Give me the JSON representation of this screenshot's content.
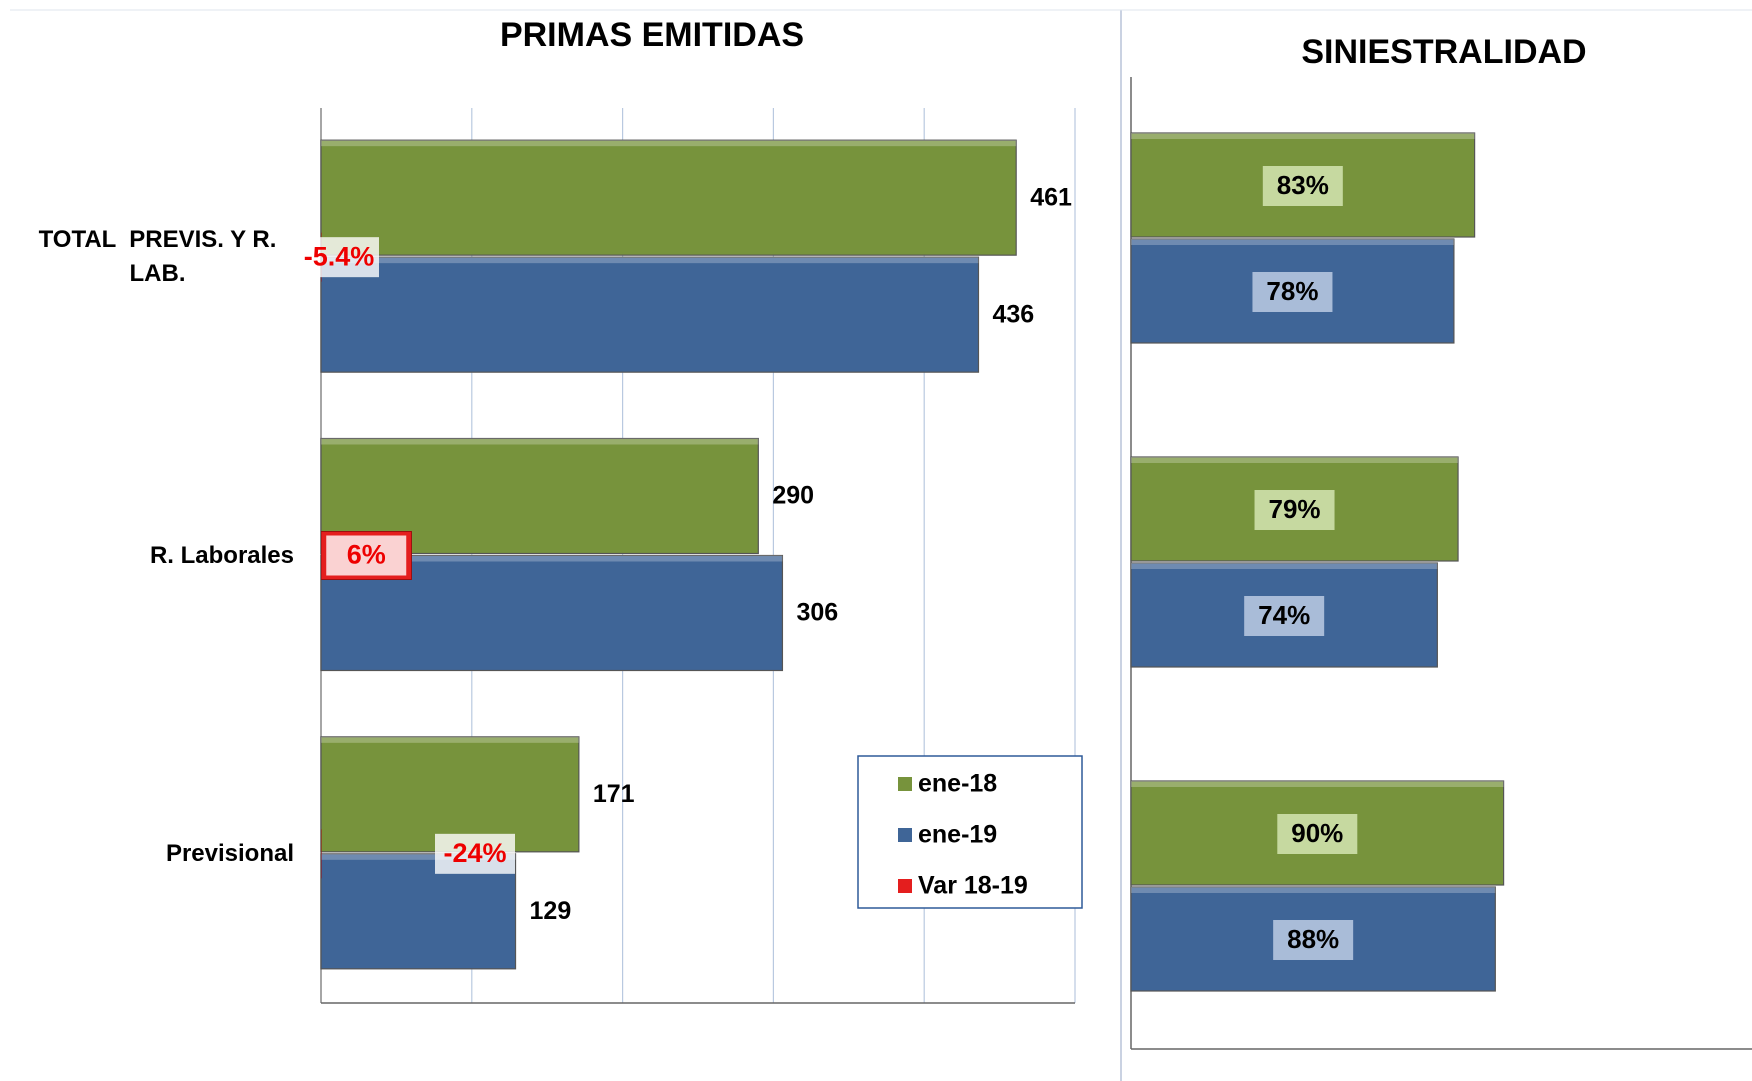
{
  "chart_data": [
    {
      "type": "bar",
      "orientation": "horizontal",
      "title": "PRIMAS EMITIDAS",
      "categories": [
        "TOTAL  PREVIS. Y R. LAB.",
        "R. Laborales",
        "Previsional"
      ],
      "series": [
        {
          "name": "ene-18",
          "color": "#77933c",
          "values": [
            461,
            290,
            171
          ]
        },
        {
          "name": "ene-19",
          "color": "#3f6597",
          "values": [
            436,
            306,
            129
          ]
        },
        {
          "name": "Var 18-19",
          "color": "#e41e1e",
          "values": [
            -5.4,
            6,
            -24
          ],
          "value_labels": [
            "-5.4%",
            "6%",
            "-24%"
          ],
          "axis": "x2"
        }
      ],
      "xlim": [
        0,
        500
      ],
      "xticks": [
        0,
        100,
        200,
        300,
        400,
        500
      ],
      "x2lim": [
        0,
        50
      ],
      "grid": true,
      "legend": "lower right"
    },
    {
      "type": "bar",
      "orientation": "horizontal",
      "title": "SINIESTRALIDAD",
      "categories": [
        null,
        null,
        null
      ],
      "series": [
        {
          "color": "#77933c",
          "values": [
            83,
            79,
            90
          ],
          "value_labels": [
            "83%",
            "79%",
            "90%"
          ]
        },
        {
          "color": "#3f6597",
          "values": [
            78,
            74,
            88
          ],
          "value_labels": [
            "78%",
            "74%",
            "88%"
          ]
        }
      ],
      "xlim": [
        0,
        150
      ],
      "grid": false
    }
  ]
}
